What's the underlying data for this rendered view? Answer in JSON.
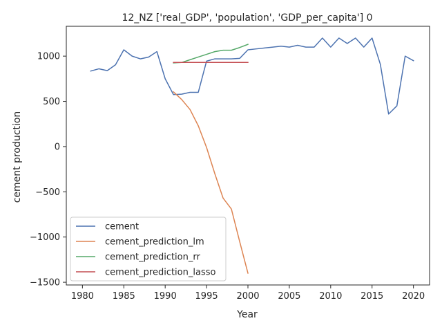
{
  "chart_data": {
    "type": "line",
    "title": "12_NZ ['real_GDP', 'population', 'GDP_per_capita'] 0",
    "xlabel": "Year",
    "ylabel": "cement production",
    "xlim": [
      1978.05,
      2021.95
    ],
    "ylim": [
      -1530,
      1330
    ],
    "xticks": [
      1980,
      1985,
      1990,
      1995,
      2000,
      2005,
      2010,
      2015,
      2020
    ],
    "yticks": [
      -1500,
      -1000,
      -500,
      0,
      500,
      1000
    ],
    "grid": false,
    "legend_position": "lower-left",
    "series": [
      {
        "name": "cement",
        "color": "#4c72b0",
        "x": [
          1981,
          1982,
          1983,
          1984,
          1985,
          1986,
          1987,
          1988,
          1989,
          1990,
          1991,
          1992,
          1993,
          1994,
          1995,
          1996,
          1997,
          1998,
          1999,
          2000,
          2001,
          2002,
          2003,
          2004,
          2005,
          2006,
          2007,
          2008,
          2009,
          2010,
          2011,
          2012,
          2013,
          2014,
          2015,
          2016,
          2017,
          2018,
          2019,
          2020
        ],
        "y": [
          835,
          860,
          840,
          905,
          1070,
          1000,
          970,
          990,
          1050,
          750,
          575,
          580,
          600,
          600,
          945,
          970,
          970,
          970,
          975,
          1070,
          1080,
          1090,
          1100,
          1110,
          1100,
          1120,
          1100,
          1100,
          1200,
          1100,
          1200,
          1140,
          1200,
          1100,
          1200,
          910,
          360,
          450,
          1000,
          950
        ]
      },
      {
        "name": "cement_prediction_lm",
        "color": "#dd8452",
        "x": [
          1991,
          1992,
          1993,
          1994,
          1995,
          1996,
          1997,
          1998,
          1999,
          2000
        ],
        "y": [
          605,
          520,
          410,
          230,
          -10,
          -300,
          -570,
          -690,
          -1050,
          -1400
        ]
      },
      {
        "name": "cement_prediction_rr",
        "color": "#55a868",
        "x": [
          1991,
          1992,
          1993,
          1994,
          1995,
          1996,
          1997,
          1998,
          1999,
          2000
        ],
        "y": [
          925,
          930,
          960,
          990,
          1020,
          1050,
          1065,
          1065,
          1095,
          1130
        ]
      },
      {
        "name": "cement_prediction_lasso",
        "color": "#c44e52",
        "x": [
          1991,
          1992,
          1993,
          1994,
          1995,
          1996,
          1997,
          1998,
          1999,
          2000
        ],
        "y": [
          930,
          930,
          930,
          930,
          930,
          930,
          930,
          930,
          930,
          930
        ]
      }
    ]
  }
}
